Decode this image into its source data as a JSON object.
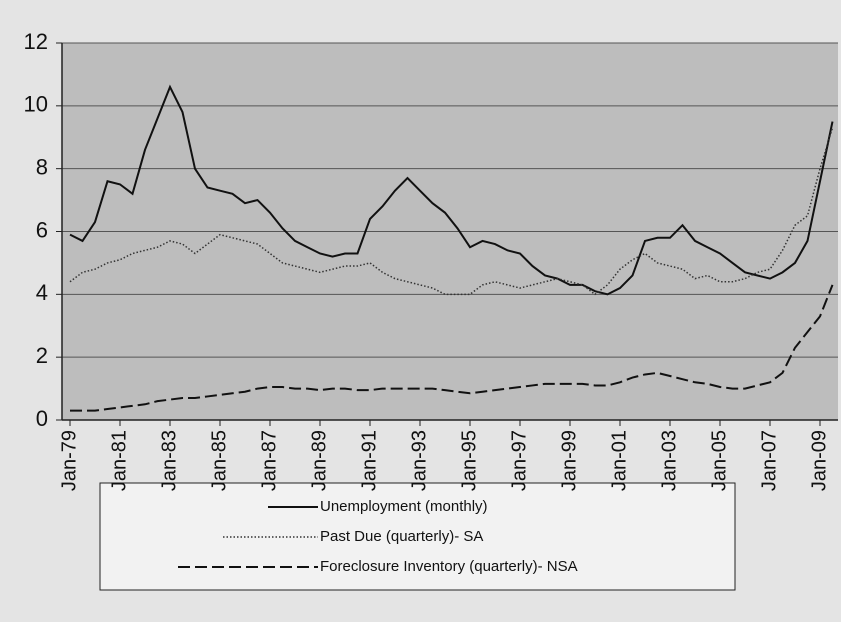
{
  "chart_data": {
    "type": "line",
    "x": [
      1979,
      1979.5,
      1980,
      1980.5,
      1981,
      1981.5,
      1982,
      1982.5,
      1983,
      1983.5,
      1984,
      1984.5,
      1985,
      1985.5,
      1986,
      1986.5,
      1987,
      1987.5,
      1988,
      1988.5,
      1989,
      1989.5,
      1990,
      1990.5,
      1991,
      1991.5,
      1992,
      1992.5,
      1993,
      1993.5,
      1994,
      1994.5,
      1995,
      1995.5,
      1996,
      1996.5,
      1997,
      1997.5,
      1998,
      1998.5,
      1999,
      1999.5,
      2000,
      2000.5,
      2001,
      2001.5,
      2002,
      2002.5,
      2003,
      2003.5,
      2004,
      2004.5,
      2005,
      2005.5,
      2006,
      2006.5,
      2007,
      2007.5,
      2008,
      2008.5,
      2009,
      2009.5
    ],
    "series": [
      {
        "name": "Unemployment (monthly)",
        "color": "#111111",
        "dash": "solid",
        "values": [
          5.9,
          5.7,
          6.3,
          7.6,
          7.5,
          7.2,
          8.6,
          9.6,
          10.6,
          9.8,
          8.0,
          7.4,
          7.3,
          7.2,
          6.9,
          7.0,
          6.6,
          6.1,
          5.7,
          5.5,
          5.3,
          5.2,
          5.3,
          5.3,
          6.4,
          6.8,
          7.3,
          7.7,
          7.3,
          6.9,
          6.6,
          6.1,
          5.5,
          5.7,
          5.6,
          5.4,
          5.3,
          4.9,
          4.6,
          4.5,
          4.3,
          4.3,
          4.1,
          4.0,
          4.2,
          4.6,
          5.7,
          5.8,
          5.8,
          6.2,
          5.7,
          5.5,
          5.3,
          5.0,
          4.7,
          4.6,
          4.5,
          4.7,
          5.0,
          5.7,
          7.6,
          9.5
        ]
      },
      {
        "name": "Past Due (quarterly)- SA",
        "color": "#333333",
        "dash": "dotted",
        "values": [
          4.4,
          4.7,
          4.8,
          5.0,
          5.1,
          5.3,
          5.4,
          5.5,
          5.7,
          5.6,
          5.3,
          5.6,
          5.9,
          5.8,
          5.7,
          5.6,
          5.3,
          5.0,
          4.9,
          4.8,
          4.7,
          4.8,
          4.9,
          4.9,
          5.0,
          4.7,
          4.5,
          4.4,
          4.3,
          4.2,
          4.0,
          4.0,
          4.0,
          4.3,
          4.4,
          4.3,
          4.2,
          4.3,
          4.4,
          4.5,
          4.4,
          4.3,
          4.0,
          4.3,
          4.8,
          5.1,
          5.3,
          5.0,
          4.9,
          4.8,
          4.5,
          4.6,
          4.4,
          4.4,
          4.5,
          4.7,
          4.8,
          5.4,
          6.2,
          6.5,
          8.0,
          9.3
        ]
      },
      {
        "name": "Foreclosure Inventory (quarterly)- NSA",
        "color": "#111111",
        "dash": "dashed",
        "values": [
          0.3,
          0.3,
          0.3,
          0.35,
          0.4,
          0.45,
          0.5,
          0.6,
          0.65,
          0.7,
          0.7,
          0.75,
          0.8,
          0.85,
          0.9,
          1.0,
          1.05,
          1.05,
          1.0,
          1.0,
          0.95,
          1.0,
          1.0,
          0.95,
          0.95,
          1.0,
          1.0,
          1.0,
          1.0,
          1.0,
          0.95,
          0.9,
          0.85,
          0.9,
          0.95,
          1.0,
          1.05,
          1.1,
          1.15,
          1.15,
          1.15,
          1.15,
          1.1,
          1.1,
          1.2,
          1.35,
          1.45,
          1.5,
          1.4,
          1.3,
          1.2,
          1.15,
          1.05,
          1.0,
          1.0,
          1.1,
          1.2,
          1.5,
          2.3,
          2.8,
          3.3,
          4.3
        ]
      }
    ],
    "xlim": [
      1979,
      2009.6
    ],
    "xticks": [
      {
        "value": 1979,
        "label": "Jan-79"
      },
      {
        "value": 1981,
        "label": "Jan-81"
      },
      {
        "value": 1983,
        "label": "Jan-83"
      },
      {
        "value": 1985,
        "label": "Jan-85"
      },
      {
        "value": 1987,
        "label": "Jan-87"
      },
      {
        "value": 1989,
        "label": "Jan-89"
      },
      {
        "value": 1991,
        "label": "Jan-91"
      },
      {
        "value": 1993,
        "label": "Jan-93"
      },
      {
        "value": 1995,
        "label": "Jan-95"
      },
      {
        "value": 1997,
        "label": "Jan-97"
      },
      {
        "value": 1999,
        "label": "Jan-99"
      },
      {
        "value": 2001,
        "label": "Jan-01"
      },
      {
        "value": 2003,
        "label": "Jan-03"
      },
      {
        "value": 2005,
        "label": "Jan-05"
      },
      {
        "value": 2007,
        "label": "Jan-07"
      },
      {
        "value": 2009,
        "label": "Jan-09"
      }
    ],
    "ylim": [
      0,
      12
    ],
    "yticks": [
      0,
      2,
      4,
      6,
      8,
      10,
      12
    ],
    "grid": true
  }
}
